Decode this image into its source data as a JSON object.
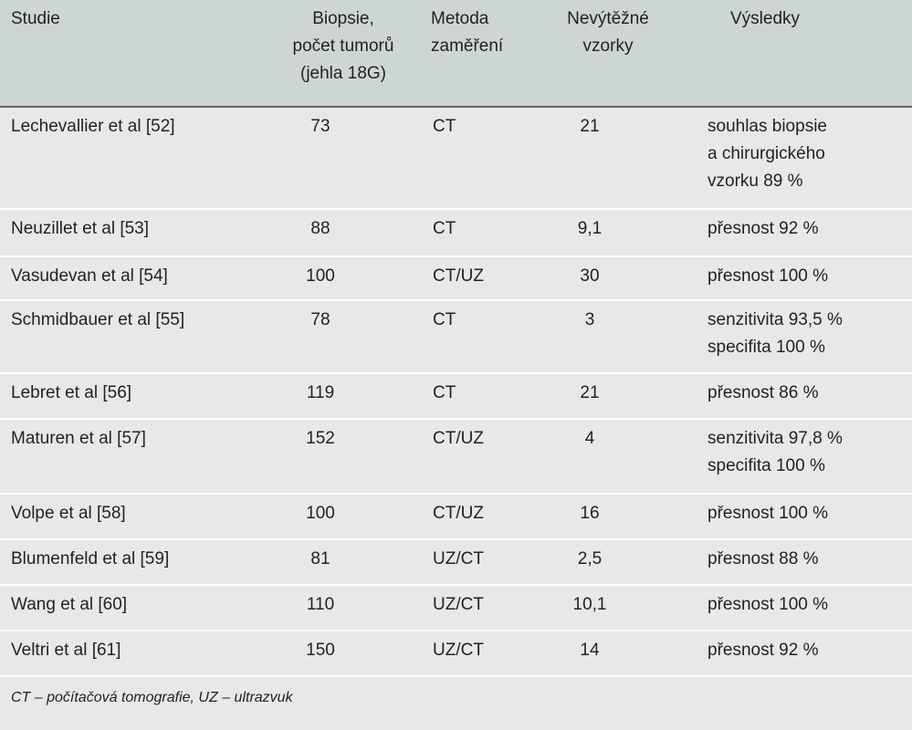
{
  "table": {
    "header": [
      "Studie",
      "Biopsie,\npočet tumorů\n(jehla 18G)",
      "Metoda\nzaměření",
      "Nevýtěžné\nvzorky",
      "Výsledky"
    ],
    "rows": [
      [
        "Lechevallier et al [52]",
        "73",
        "CT",
        "21",
        "souhlas biopsie\na chirurgického\nvzorku 89 %"
      ],
      [
        "Neuzillet et al [53]",
        "88",
        "CT",
        "9,1",
        "přesnost 92 %"
      ],
      [
        "Vasudevan et al [54]",
        "100",
        "CT/UZ",
        "30",
        "přesnost 100 %"
      ],
      [
        "Schmidbauer et al [55]",
        "78",
        "CT",
        "3",
        "senzitivita 93,5 %\nspecifita 100 %"
      ],
      [
        "Lebret et al [56]",
        "119",
        "CT",
        "21",
        "přesnost 86 %"
      ],
      [
        "Maturen et al [57]",
        "152",
        "CT/UZ",
        "4",
        "senzitivita 97,8 %\nspecifita 100 %"
      ],
      [
        "Volpe et al [58]",
        "100",
        "CT/UZ",
        "16",
        "přesnost 100 %"
      ],
      [
        "Blumenfeld et al [59]",
        "81",
        "UZ/CT",
        "2,5",
        "přesnost 88 %"
      ],
      [
        "Wang et al [60]",
        "110",
        "UZ/CT",
        "10,1",
        "přesnost 100 %"
      ],
      [
        "Veltri et al [61]",
        "150",
        "UZ/CT",
        "14",
        "přesnost 92 %"
      ]
    ],
    "footnote": "CT – počítačová tomografie, UZ – ultrazvuk"
  }
}
